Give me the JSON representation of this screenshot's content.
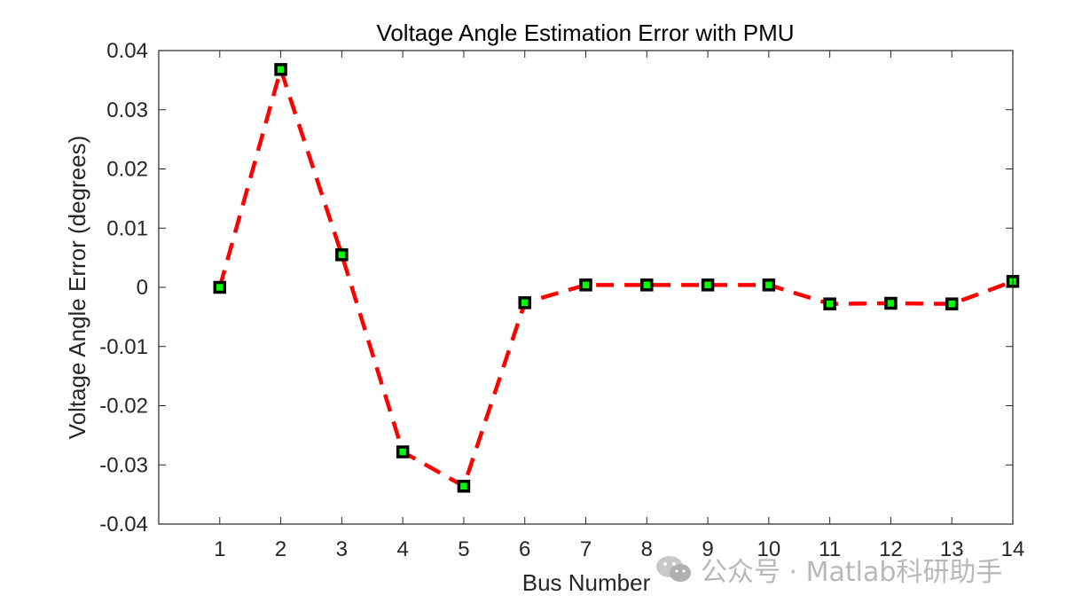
{
  "chart_data": {
    "type": "line",
    "title": "Voltage Angle Estimation Error with PMU",
    "xlabel": "Bus Number",
    "ylabel": "Voltage Angle Error (degrees)",
    "xlim": [
      0,
      14
    ],
    "ylim": [
      -0.04,
      0.04
    ],
    "x_ticks": [
      1,
      2,
      3,
      4,
      5,
      6,
      7,
      8,
      9,
      10,
      11,
      12,
      13,
      14
    ],
    "y_ticks": [
      -0.04,
      -0.03,
      -0.02,
      -0.01,
      0,
      0.01,
      0.02,
      0.03,
      0.04
    ],
    "y_tick_labels": [
      "-0.04",
      "-0.03",
      "-0.02",
      "-0.01",
      "0",
      "0.01",
      "0.02",
      "0.03",
      "0.04"
    ],
    "grid": false,
    "series": [
      {
        "x": [
          1,
          2,
          3,
          4,
          5,
          6,
          7,
          8,
          9,
          10,
          11,
          12,
          13,
          14
        ],
        "values": [
          0.0,
          0.0368,
          0.0055,
          -0.0278,
          -0.0336,
          -0.0026,
          0.0004,
          0.0004,
          0.0004,
          0.0004,
          -0.0028,
          -0.0027,
          -0.0028,
          0.001
        ],
        "line_color": "#ff0000",
        "line_style": "dashed",
        "marker": "square",
        "marker_edge_color": "#000000",
        "marker_face_color": "#00ff00"
      }
    ]
  },
  "watermark": {
    "text": "公众号 · Matlab科研助手",
    "icon": "wechat-icon"
  }
}
